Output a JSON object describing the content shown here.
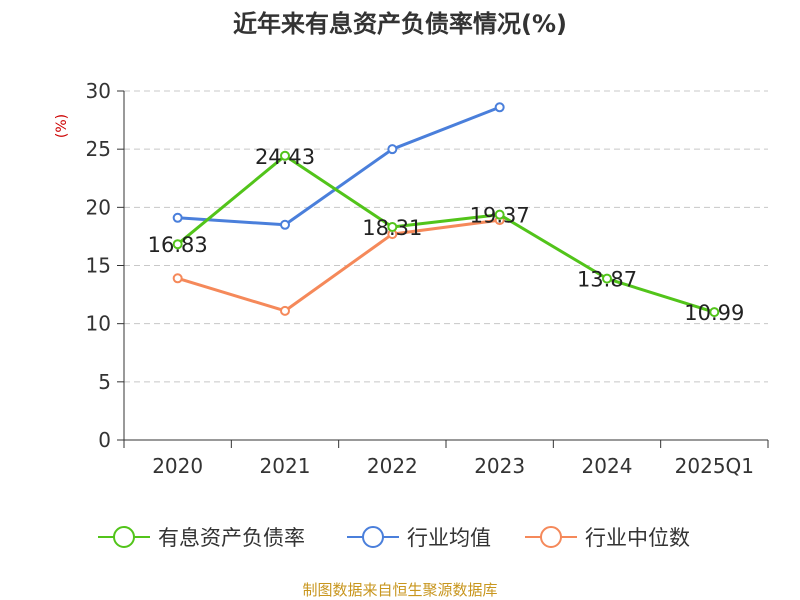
{
  "chart_data": {
    "type": "line",
    "title": "近年来有息资产负债率情况(%)",
    "ylabel": "(%)",
    "categories": [
      "2020",
      "2021",
      "2022",
      "2023",
      "2024",
      "2025Q1"
    ],
    "ylim": [
      0,
      30
    ],
    "yticks": [
      "0",
      "5",
      "10",
      "15",
      "20",
      "25",
      "30"
    ],
    "grid": true,
    "legend_position": "bottom",
    "series": [
      {
        "name": "有息资产负债率",
        "color": "#52c41a",
        "values": [
          16.83,
          24.43,
          18.31,
          19.37,
          13.87,
          10.99
        ],
        "labels": [
          "16.83",
          "24.43",
          "18.31",
          "19.37",
          "13.87",
          "10.99"
        ]
      },
      {
        "name": "行业均值",
        "color": "#4a7fdb",
        "values": [
          19.1,
          18.5,
          25.0,
          28.6,
          null,
          null
        ]
      },
      {
        "name": "行业中位数",
        "color": "#f5895a",
        "values": [
          13.9,
          11.1,
          17.7,
          18.9,
          null,
          null
        ]
      }
    ]
  },
  "source": "制图数据来自恒生聚源数据库"
}
